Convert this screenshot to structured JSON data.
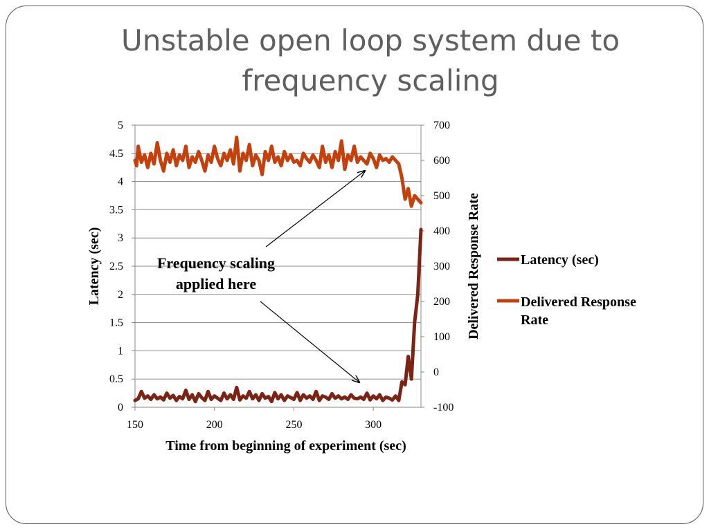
{
  "slide": {
    "title_line1": "Unstable open loop system due to",
    "title_line2": "frequency scaling"
  },
  "chart_data": {
    "type": "line",
    "xlabel": "Time from beginning of experiment (sec)",
    "ylabel_left": "Latency (sec)",
    "ylabel_right": "Delivered Response Rate",
    "xlim": [
      150,
      330
    ],
    "ylim_left": [
      0,
      5
    ],
    "ylim_right": [
      -100,
      700
    ],
    "x_ticks": [
      "150",
      "200",
      "250",
      "300"
    ],
    "y_left_ticks": [
      "0",
      "0.5",
      "1",
      "1.5",
      "2",
      "2.5",
      "3",
      "3.5",
      "4",
      "4.5",
      "5"
    ],
    "y_right_ticks": [
      "-100",
      "0",
      "100",
      "200",
      "300",
      "400",
      "500",
      "600",
      "700"
    ],
    "grid": true,
    "legend_position": "right",
    "annotation": {
      "line1": "Frequency scaling",
      "line2": "applied here"
    },
    "series": [
      {
        "name": "Latency (sec)",
        "axis": "left",
        "color": "#7b2416",
        "x": [
          150,
          152,
          154,
          156,
          158,
          160,
          162,
          164,
          166,
          168,
          170,
          172,
          174,
          176,
          178,
          180,
          182,
          184,
          186,
          188,
          190,
          192,
          194,
          196,
          198,
          200,
          202,
          204,
          206,
          208,
          210,
          212,
          214,
          216,
          218,
          220,
          222,
          224,
          226,
          228,
          230,
          232,
          234,
          236,
          238,
          240,
          242,
          244,
          246,
          248,
          250,
          252,
          254,
          256,
          258,
          260,
          262,
          264,
          266,
          268,
          270,
          272,
          274,
          276,
          278,
          280,
          282,
          284,
          286,
          288,
          290,
          292,
          294,
          296,
          298,
          300,
          302,
          304,
          306,
          308,
          310,
          312,
          314,
          316,
          318,
          320,
          322,
          324,
          326,
          328,
          330
        ],
        "values": [
          0.12,
          0.15,
          0.28,
          0.16,
          0.2,
          0.14,
          0.22,
          0.15,
          0.18,
          0.13,
          0.25,
          0.16,
          0.21,
          0.12,
          0.19,
          0.15,
          0.3,
          0.14,
          0.22,
          0.1,
          0.24,
          0.17,
          0.12,
          0.28,
          0.14,
          0.2,
          0.16,
          0.12,
          0.25,
          0.15,
          0.22,
          0.14,
          0.35,
          0.13,
          0.2,
          0.16,
          0.28,
          0.15,
          0.22,
          0.12,
          0.24,
          0.16,
          0.19,
          0.1,
          0.26,
          0.15,
          0.22,
          0.12,
          0.2,
          0.17,
          0.14,
          0.26,
          0.12,
          0.22,
          0.16,
          0.2,
          0.14,
          0.28,
          0.12,
          0.2,
          0.18,
          0.14,
          0.24,
          0.16,
          0.2,
          0.15,
          0.18,
          0.14,
          0.22,
          0.16,
          0.15,
          0.18,
          0.14,
          0.25,
          0.13,
          0.2,
          0.15,
          0.22,
          0.12,
          0.18,
          0.16,
          0.13,
          0.2,
          0.12,
          0.45,
          0.4,
          0.9,
          0.5,
          1.5,
          2.0,
          3.15
        ],
        "stroke_width": 5
      },
      {
        "name": "Delivered Response Rate",
        "axis": "right",
        "color": "#c4400c",
        "x": [
          150,
          151,
          152,
          154,
          156,
          158,
          160,
          162,
          164,
          166,
          168,
          170,
          172,
          174,
          176,
          178,
          180,
          182,
          184,
          186,
          188,
          190,
          192,
          194,
          196,
          198,
          200,
          202,
          204,
          206,
          208,
          210,
          212,
          214,
          216,
          218,
          220,
          222,
          224,
          226,
          228,
          230,
          232,
          234,
          236,
          238,
          240,
          242,
          244,
          246,
          248,
          250,
          252,
          254,
          256,
          258,
          260,
          262,
          264,
          266,
          268,
          270,
          272,
          274,
          276,
          278,
          280,
          282,
          284,
          286,
          288,
          290,
          292,
          294,
          296,
          298,
          300,
          302,
          304,
          306,
          308,
          310,
          312,
          314,
          316,
          318,
          320,
          322,
          324,
          326,
          328,
          330
        ],
        "values": [
          600,
          585,
          640,
          595,
          615,
          580,
          620,
          590,
          650,
          600,
          570,
          620,
          595,
          630,
          585,
          615,
          600,
          640,
          580,
          610,
          595,
          625,
          600,
          570,
          615,
          595,
          640,
          605,
          585,
          620,
          600,
          630,
          590,
          665,
          570,
          620,
          600,
          645,
          585,
          615,
          600,
          560,
          625,
          600,
          640,
          595,
          610,
          585,
          625,
          600,
          615,
          595,
          600,
          585,
          620,
          605,
          595,
          615,
          600,
          580,
          640,
          595,
          615,
          580,
          625,
          600,
          655,
          575,
          615,
          600,
          640,
          595,
          610,
          600,
          590,
          620,
          605,
          580,
          615,
          600,
          605,
          595,
          610,
          600,
          590,
          550,
          490,
          520,
          470,
          500,
          490,
          480
        ]
      }
    ]
  }
}
